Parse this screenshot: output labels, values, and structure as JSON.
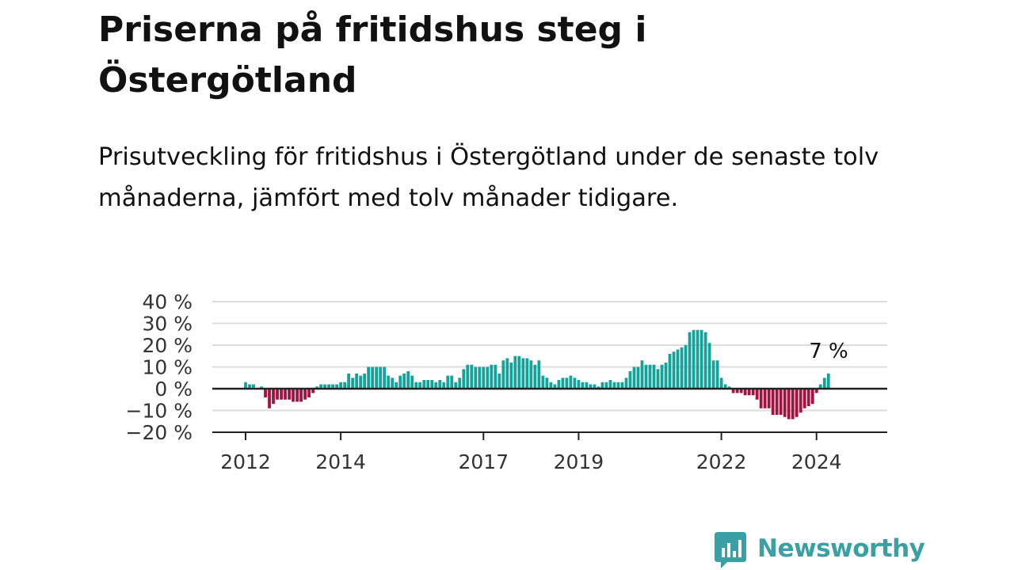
{
  "header": {
    "title": "Priserna på fritidshus steg i Östergötland",
    "subtitle": "Prisutveckling för fritidshus i Östergötland under de senaste tolv månaderna, jämfört med tolv månader tidigare."
  },
  "colors": {
    "positive": "#14a39a",
    "negative": "#a3133f",
    "grid": "#dddddd",
    "axis": "#222222",
    "brand": "#3aa0a3"
  },
  "chart_data": {
    "type": "bar",
    "title": "Priserna på fritidshus steg i Östergötland",
    "subtitle": "Prisutveckling för fritidshus i Östergötland under de senaste tolv månaderna, jämfört med tolv månader tidigare.",
    "xlabel": "",
    "ylabel": "",
    "unit": "%",
    "ylim": [
      -20,
      40
    ],
    "y_ticks": [
      40,
      30,
      20,
      10,
      0,
      -10,
      -20
    ],
    "y_tick_labels": [
      "40 %",
      "30 %",
      "20 %",
      "10 %",
      "0 %",
      "−10 %",
      "−20 %"
    ],
    "x_ticks": [
      "2012",
      "2014",
      "2017",
      "2019",
      "2022",
      "2024"
    ],
    "start": "2012-01",
    "annotation": "7 %",
    "grid": true,
    "legend": "none",
    "values": [
      3,
      2,
      2,
      0,
      1,
      -4,
      -9,
      -7,
      -5,
      -5,
      -5,
      -5,
      -6,
      -6,
      -6,
      -5,
      -4,
      -2,
      1,
      2,
      2,
      2,
      2,
      2,
      3,
      3,
      7,
      5,
      7,
      6,
      7,
      10,
      10,
      10,
      10,
      10,
      6,
      5,
      3,
      6,
      7,
      8,
      6,
      3,
      3,
      4,
      4,
      4,
      3,
      4,
      3,
      6,
      6,
      3,
      5,
      9,
      11,
      11,
      10,
      10,
      10,
      10,
      11,
      11,
      7,
      13,
      14,
      12,
      15,
      15,
      14,
      14,
      13,
      11,
      13,
      6,
      5,
      3,
      2,
      4,
      5,
      5,
      6,
      5,
      4,
      3,
      3,
      2,
      2,
      1,
      3,
      3,
      4,
      3,
      3,
      3,
      5,
      8,
      10,
      10,
      13,
      11,
      11,
      11,
      9,
      11,
      12,
      16,
      17,
      18,
      19,
      20,
      26,
      27,
      27,
      27,
      26,
      21,
      13,
      13,
      5,
      2,
      1,
      -2,
      -2,
      -2,
      -3,
      -3,
      -3,
      -5,
      -9,
      -9,
      -9,
      -12,
      -12,
      -12,
      -13,
      -14,
      -14,
      -13,
      -11,
      -9,
      -8,
      -7,
      -2,
      2,
      5,
      7
    ]
  },
  "logo": {
    "text": "Newsworthy"
  }
}
